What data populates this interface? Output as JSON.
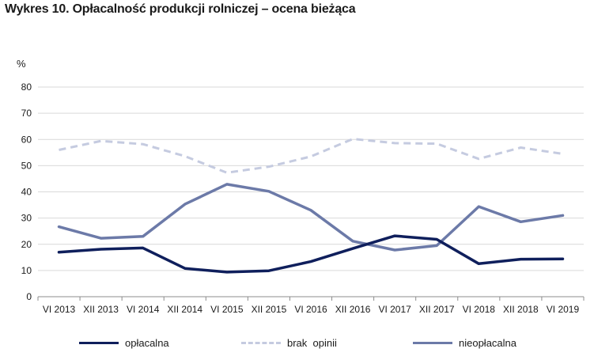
{
  "title": "Wykres 10. Opłacalność produkcji rolniczej – ocena bieżąca",
  "unit": "%",
  "colors": {
    "oplacalna": "#0f1f5c",
    "brak_opinii": "#c5cbe0",
    "nieoplacalna": "#6c7aa8",
    "grid": "#d9d9d9",
    "axis": "#8c8c8c"
  },
  "chart_data": {
    "type": "line",
    "title": "Wykres 10. Opłacalność produkcji rolniczej – ocena bieżąca",
    "ylabel": "%",
    "xlabel": "",
    "ylim": [
      0,
      80
    ],
    "yticks": [
      0,
      10,
      20,
      30,
      40,
      50,
      60,
      70,
      80
    ],
    "grid": true,
    "legend": "bottom",
    "categories": [
      "VI 2013",
      "XII 2013",
      "VI 2014",
      "XII 2014",
      "VI 2015",
      "XII 2015",
      "VI 2016",
      "XII 2016",
      "VI 2017",
      "XII 2017",
      "VI 2018",
      "XII 2018",
      "VI 2019"
    ],
    "series": [
      {
        "name": "opłacalna",
        "style": "solid",
        "color": "#0f1f5c",
        "values": [
          17.0,
          18.1,
          18.6,
          10.8,
          9.4,
          9.9,
          13.4,
          18.4,
          23.2,
          21.9,
          12.6,
          14.3,
          14.4
        ]
      },
      {
        "name": "brak  opinii",
        "style": "dashed",
        "color": "#c5cbe0",
        "values": [
          56.0,
          59.4,
          58.2,
          53.6,
          47.3,
          49.6,
          53.5,
          60.2,
          58.6,
          58.4,
          52.6,
          56.9,
          54.5
        ]
      },
      {
        "name": "nieopłacalna",
        "style": "solid",
        "color": "#6c7aa8",
        "values": [
          26.7,
          22.3,
          23.0,
          35.3,
          42.9,
          40.2,
          33.0,
          21.2,
          17.8,
          19.5,
          34.4,
          28.6,
          31.0
        ]
      }
    ]
  }
}
